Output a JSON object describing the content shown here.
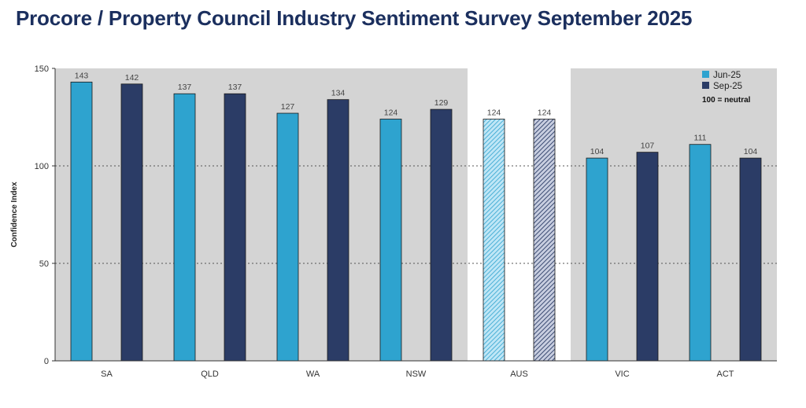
{
  "chart_data": {
    "type": "bar",
    "title": "Procore / Property Council Industry Sentiment Survey September 2025",
    "ylabel": "Confidence Index",
    "xlabel": "",
    "ylim": [
      0,
      150
    ],
    "yticks": [
      0,
      50,
      100,
      150
    ],
    "grid": "dotted horizontal",
    "legend_position": "top-right",
    "legend_note": "100 = neutral",
    "highlight_category": "AUS",
    "categories": [
      "SA",
      "QLD",
      "WA",
      "NSW",
      "AUS",
      "VIC",
      "ACT"
    ],
    "series": [
      {
        "name": "Jun-25",
        "color": "#2ea3cf",
        "values": [
          143,
          137,
          127,
          124,
          124,
          104,
          111
        ]
      },
      {
        "name": "Sep-25",
        "color": "#2b3c66",
        "values": [
          142,
          137,
          134,
          129,
          124,
          107,
          104
        ]
      }
    ]
  }
}
